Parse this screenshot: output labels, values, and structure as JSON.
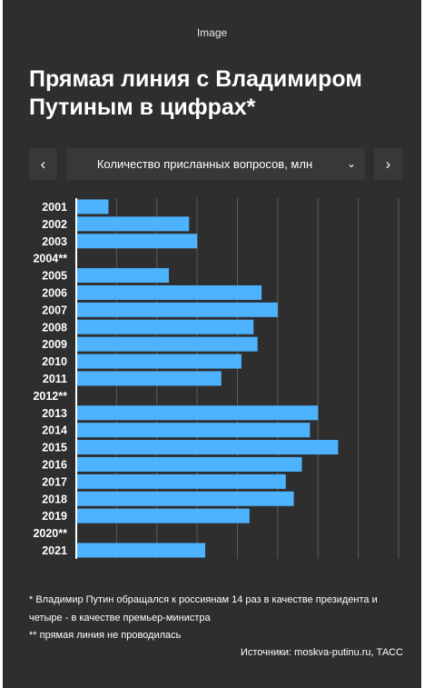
{
  "caption": "Image",
  "title": "Прямая линия с Владимиром Путиным в цифрах*",
  "controls": {
    "prev_label": "‹",
    "next_label": "›",
    "metric_label": "Количество присланных вопросов, млн",
    "chevron": "⌄"
  },
  "footnotes": {
    "note1": "* Владимир Путин обращался к россиянам 14 раз в качестве президента и четыре - в качестве премьер-министра",
    "note2": "** прямая линия не проводилась",
    "sources": "Источники: moskva-putinu.ru, ТАСС"
  },
  "colors": {
    "background": "#2e2e2e",
    "bar": "#4db3ff",
    "grid": "#5a5a5a",
    "axis": "#ffffff",
    "text": "#ffffff"
  },
  "chart_data": {
    "type": "bar",
    "orientation": "horizontal",
    "categories": [
      "2001",
      "2002",
      "2003",
      "2004**",
      "2005",
      "2006",
      "2007",
      "2008",
      "2009",
      "2010",
      "2011",
      "2012**",
      "2013",
      "2014",
      "2015",
      "2016",
      "2017",
      "2018",
      "2019",
      "2020**",
      "2021"
    ],
    "values": [
      0.4,
      1.4,
      1.5,
      null,
      1.15,
      2.3,
      2.5,
      2.2,
      2.25,
      2.05,
      1.8,
      null,
      3.0,
      2.9,
      3.25,
      2.8,
      2.6,
      2.7,
      2.15,
      null,
      1.6
    ],
    "title": "",
    "xlabel": "",
    "ylabel": "",
    "xlim": [
      0,
      4
    ],
    "grid": true,
    "show_value_axis_labels": false
  }
}
